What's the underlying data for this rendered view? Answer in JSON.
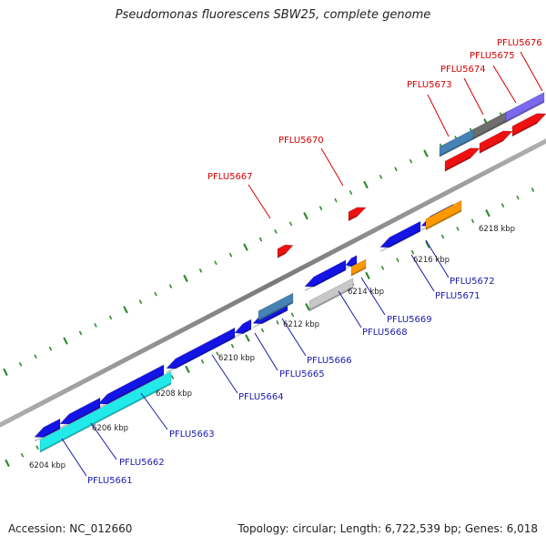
{
  "title": "Pseudomonas fluorescens SBW25, complete genome",
  "footer": {
    "accession": "Accession: NC_012660",
    "summary": "Topology: circular; Length: 6,722,539 bp; Genes: 6,018"
  },
  "colors": {
    "backbone": "#8c8c8c",
    "tick_dots": "#2e8b2e",
    "forward_label": "#d40000",
    "reverse_label": "#1a1aaa",
    "gene_blue": "#1414e6",
    "gene_red": "#ee1111",
    "gene_cyan": "#22eaea",
    "gene_steel": "#4682b4",
    "gene_gray": "#6e6e6e",
    "gene_lightgray": "#c8c8c8",
    "gene_orange": "#ff9900",
    "gene_purple": "#7b68ee"
  },
  "scale_labels": [
    "6204 kbp",
    "6206 kbp",
    "6208 kbp",
    "6210 kbp",
    "6212 kbp",
    "6214 kbp",
    "6216 kbp",
    "6218 kbp"
  ],
  "gene_labels": {
    "forward": [
      "PFLU5667",
      "PFLU5670",
      "PFLU5673",
      "PFLU5674",
      "PFLU5675",
      "PFLU5676"
    ],
    "reverse": [
      "PFLU5661",
      "PFLU5662",
      "PFLU5663",
      "PFLU5664",
      "PFLU5665",
      "PFLU5666",
      "PFLU5668",
      "PFLU5669",
      "PFLU5671",
      "PFLU5672"
    ]
  }
}
